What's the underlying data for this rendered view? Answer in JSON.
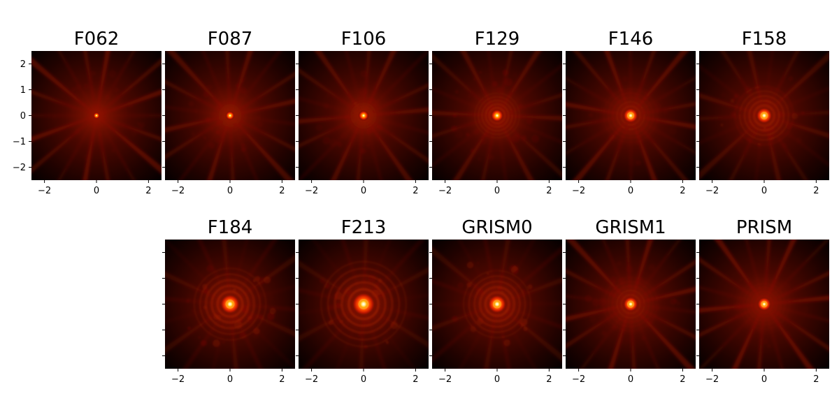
{
  "chart_data": {
    "type": "heatmap",
    "description_colormap": "black-red-yellow-white",
    "grid": false,
    "xlim": [
      -2.5,
      2.5
    ],
    "ylim": [
      -2.5,
      2.5
    ],
    "xticks": [
      -2,
      0,
      2
    ],
    "yticks": [
      -2,
      -1,
      0,
      1,
      2
    ],
    "xtick_labels": [
      "−2",
      "0",
      "2"
    ],
    "ytick_labels": [
      "−2",
      "−1",
      "0",
      "1",
      "2"
    ],
    "panels": [
      {
        "title": "F062",
        "row": 0,
        "col": 0,
        "core": 0.05,
        "spikes": 0.85,
        "rings": 0.15
      },
      {
        "title": "F087",
        "row": 0,
        "col": 1,
        "core": 0.07,
        "spikes": 0.75,
        "rings": 0.25
      },
      {
        "title": "F106",
        "row": 0,
        "col": 2,
        "core": 0.08,
        "spikes": 0.7,
        "rings": 0.3
      },
      {
        "title": "F129",
        "row": 0,
        "col": 3,
        "core": 0.1,
        "spikes": 0.65,
        "rings": 0.35
      },
      {
        "title": "F146",
        "row": 0,
        "col": 4,
        "core": 0.12,
        "spikes": 0.8,
        "rings": 0.2
      },
      {
        "title": "F158",
        "row": 0,
        "col": 5,
        "core": 0.13,
        "spikes": 0.55,
        "rings": 0.45
      },
      {
        "title": "F184",
        "row": 1,
        "col": 1,
        "core": 0.16,
        "spikes": 0.4,
        "rings": 0.65
      },
      {
        "title": "F213",
        "row": 1,
        "col": 2,
        "core": 0.19,
        "spikes": 0.35,
        "rings": 0.7
      },
      {
        "title": "GRISM0",
        "row": 1,
        "col": 3,
        "core": 0.15,
        "spikes": 0.4,
        "rings": 0.6
      },
      {
        "title": "GRISM1",
        "row": 1,
        "col": 4,
        "core": 0.12,
        "spikes": 0.85,
        "rings": 0.2
      },
      {
        "title": "PRISM",
        "row": 1,
        "col": 5,
        "core": 0.11,
        "spikes": 0.9,
        "rings": 0.15
      }
    ]
  }
}
